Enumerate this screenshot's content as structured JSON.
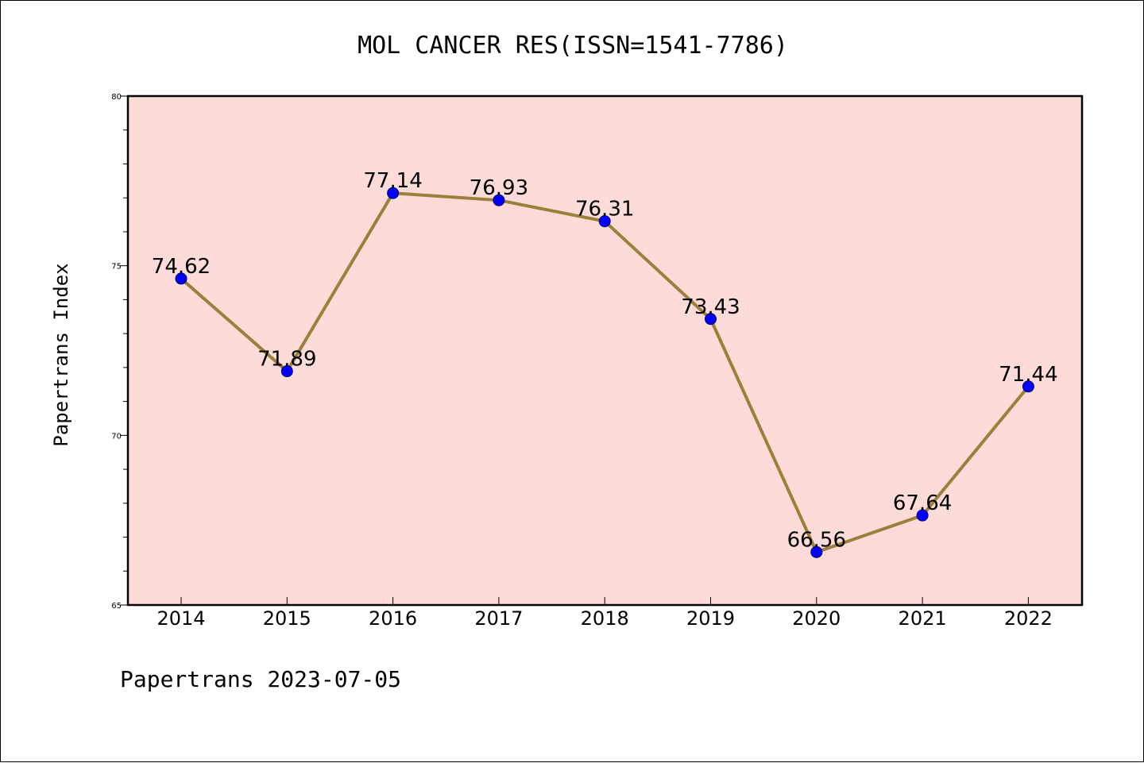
{
  "chart_data": {
    "type": "line",
    "title": "MOL CANCER RES(ISSN=1541-7786)",
    "xlabel": "",
    "ylabel": "Papertrans Index",
    "categories": [
      "2014",
      "2015",
      "2016",
      "2017",
      "2018",
      "2019",
      "2020",
      "2021",
      "2022"
    ],
    "series": [
      {
        "values": [
          74.62,
          71.89,
          77.14,
          76.93,
          76.31,
          73.43,
          66.56,
          67.64,
          71.44
        ]
      }
    ],
    "data_labels": [
      "74.62",
      "71.89",
      "77.14",
      "76.93",
      "76.31",
      "73.43",
      "66.56",
      "67.64",
      "71.44"
    ],
    "ylim": [
      65,
      80
    ],
    "y_ticks": [
      65,
      70,
      75,
      80
    ],
    "y_minor_step": 1,
    "grid": false,
    "legend": "none",
    "footer": "Papertrans 2023-07-05",
    "colors": {
      "plot_background": "#fddbd8",
      "line": "#9b7f3a",
      "marker": "#0000ff",
      "axes": "#000000"
    }
  }
}
